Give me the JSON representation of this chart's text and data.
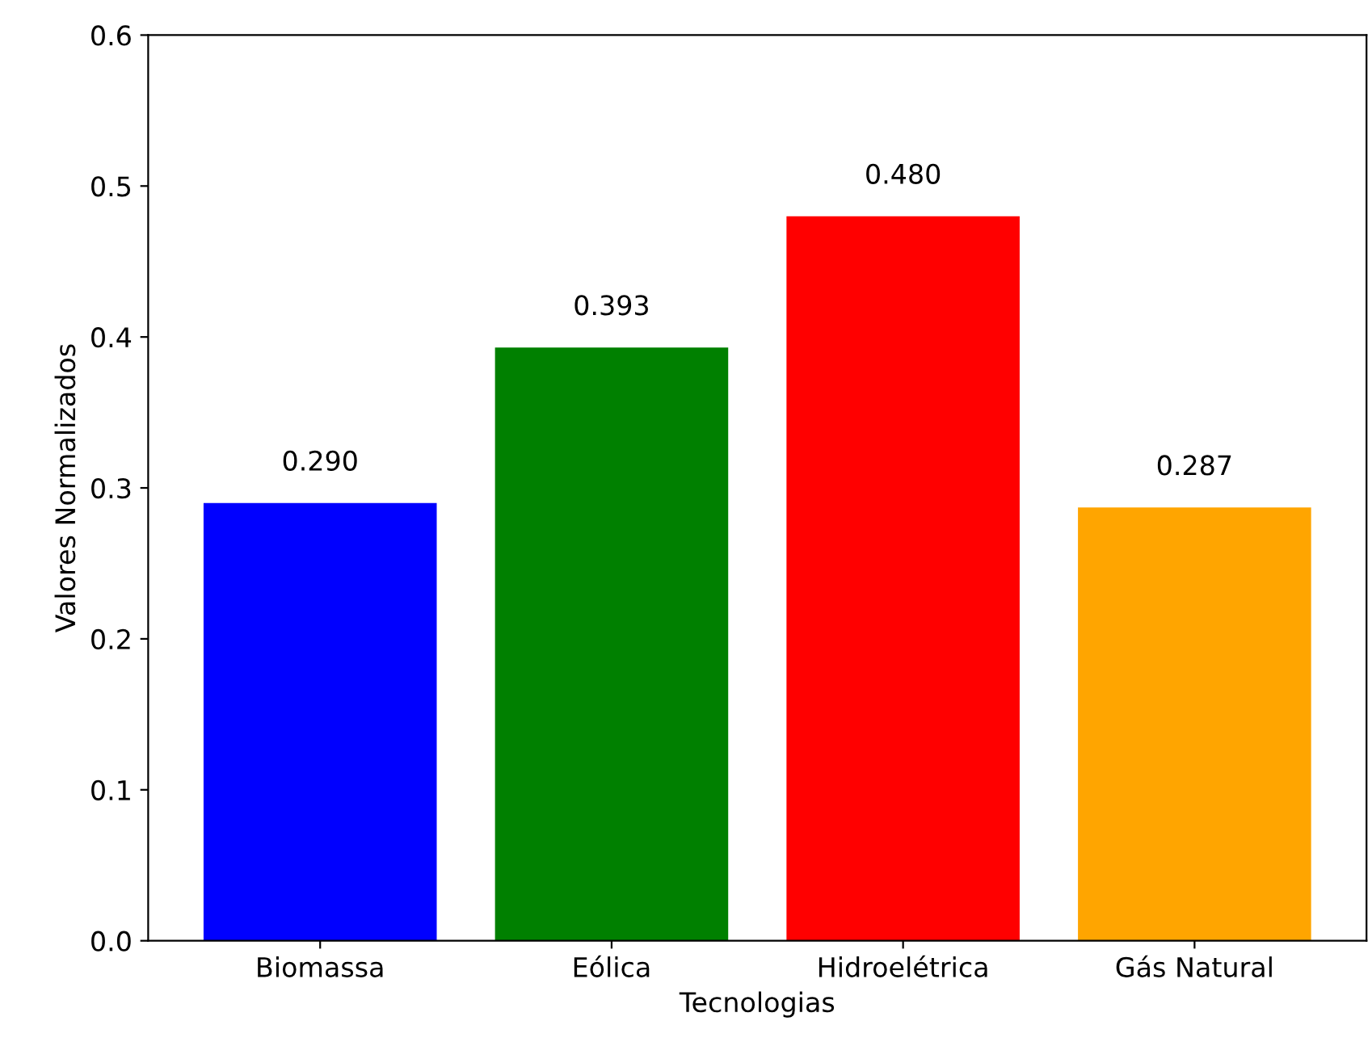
{
  "chart_data": {
    "type": "bar",
    "xlabel": "Tecnologias",
    "ylabel": "Valores Normalizados",
    "categories": [
      "Biomassa",
      "Eólica",
      "Hidroelétrica",
      "Gás Natural"
    ],
    "values": [
      0.29,
      0.393,
      0.48,
      0.287
    ],
    "colors": [
      "#0000ff",
      "#008000",
      "#ff0000",
      "#ffa500"
    ],
    "value_labels": [
      "0.290",
      "0.393",
      "0.480",
      "0.287"
    ],
    "ylim": [
      0,
      0.6
    ],
    "yticks": [
      {
        "value": 0,
        "label": "0.0"
      },
      0.1,
      0.2,
      0.3,
      0.4,
      0.5,
      0.6
    ]
  }
}
